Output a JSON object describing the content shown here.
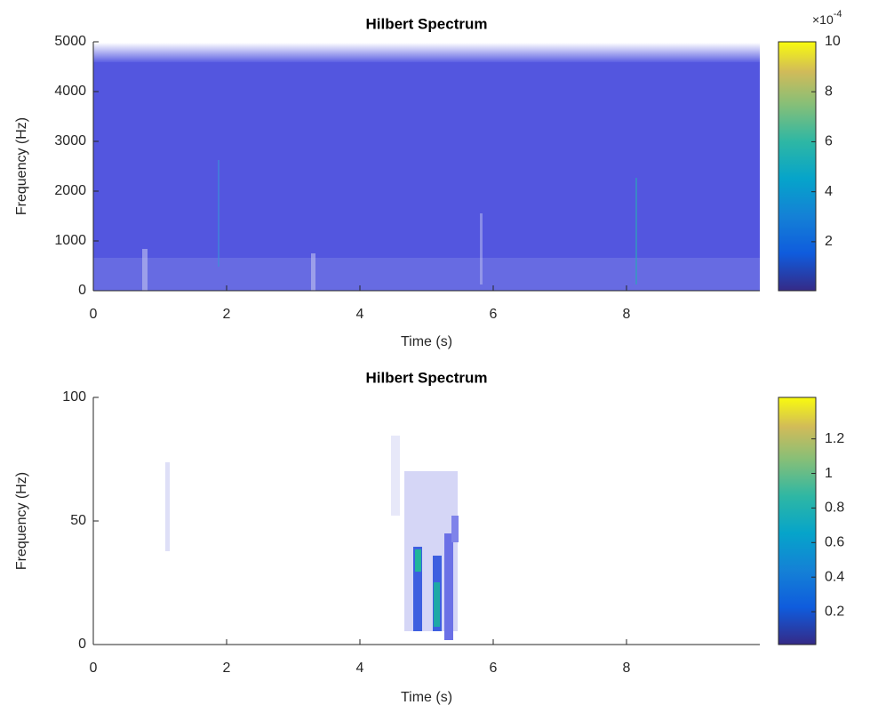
{
  "chart_data": [
    {
      "type": "heatmap",
      "title": "Hilbert Spectrum",
      "x_label": "Time (s)",
      "y_label": "Frequency (Hz)",
      "xlim": [
        0,
        10
      ],
      "ylim": [
        0,
        5000
      ],
      "xticks": [
        0,
        2,
        4,
        6,
        8
      ],
      "yticks": [
        0,
        1000,
        2000,
        3000,
        4000,
        5000
      ],
      "colorbar": {
        "clim": [
          0.04,
          10
        ],
        "ticks": [
          2,
          4,
          6,
          8,
          10
        ],
        "multiplier_base": "×10",
        "multiplier_exponent": "-4"
      }
    },
    {
      "type": "heatmap",
      "title": "Hilbert Spectrum",
      "x_label": "Time (s)",
      "y_label": "Frequency (Hz)",
      "xlim": [
        0,
        10
      ],
      "ylim": [
        0,
        100
      ],
      "xticks": [
        0,
        2,
        4,
        6,
        8
      ],
      "yticks": [
        0,
        50,
        100
      ],
      "colorbar": {
        "clim": [
          0.01,
          1.44
        ],
        "ticks": [
          0.2,
          0.4,
          0.6,
          0.8,
          1,
          1.2
        ]
      }
    }
  ]
}
